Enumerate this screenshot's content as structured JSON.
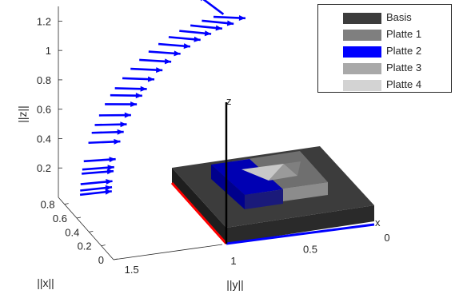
{
  "chart_data": {
    "type": "3d-quiver",
    "title": "",
    "axes": {
      "x_label": "||x||",
      "y_label": "||y||",
      "z_label": "||z||",
      "x_ticks": [
        "0",
        "0.2",
        "0.4",
        "0.6",
        "0.8"
      ],
      "y_ticks": [
        "0",
        "0.5",
        "1",
        "1.5"
      ],
      "z_ticks": [
        "0.2",
        "0.4",
        "0.6",
        "0.8",
        "1",
        "1.2"
      ],
      "xlim": [
        0,
        0.9
      ],
      "ylim": [
        0,
        1.8
      ],
      "zlim": [
        0,
        1.3
      ]
    },
    "frame_axes": {
      "x": {
        "label": "x",
        "color": "#0000ff"
      },
      "z": {
        "label": "z",
        "color": "#000000"
      },
      "y": {
        "color": "#ff0000"
      }
    },
    "legend": {
      "placement": "top-right",
      "entries": [
        {
          "name": "Basis",
          "color": "#3c3c3c"
        },
        {
          "name": "Platte 1",
          "color": "#7f7f7f"
        },
        {
          "name": "Platte 2",
          "color": "#0000ff"
        },
        {
          "name": "Platte 3",
          "color": "#a9a9a9"
        },
        {
          "name": "Platte 4",
          "color": "#d3d3d3"
        }
      ]
    },
    "arrow_color": "#0000ff",
    "arrows": [
      {
        "z": 0.08,
        "dir": 1
      },
      {
        "z": 0.1,
        "dir": -1
      },
      {
        "z": 0.13,
        "dir": 1
      },
      {
        "z": 0.18,
        "dir": -1
      },
      {
        "z": 0.2,
        "dir": 1
      },
      {
        "z": 0.24,
        "dir": -1
      },
      {
        "z": 0.33,
        "dir": 1
      },
      {
        "z": 0.38,
        "dir": -1
      },
      {
        "z": 0.42,
        "dir": 1
      },
      {
        "z": 0.47,
        "dir": -1
      },
      {
        "z": 0.53,
        "dir": 1
      },
      {
        "z": 0.58,
        "dir": -1
      },
      {
        "z": 0.62,
        "dir": 1
      },
      {
        "z": 0.68,
        "dir": -1
      },
      {
        "z": 0.74,
        "dir": 1
      },
      {
        "z": 0.8,
        "dir": -1
      },
      {
        "z": 0.86,
        "dir": 1
      },
      {
        "z": 0.92,
        "dir": -1
      },
      {
        "z": 0.98,
        "dir": 1
      },
      {
        "z": 1.04,
        "dir": -1
      },
      {
        "z": 1.1,
        "dir": 1
      },
      {
        "z": 1.16,
        "dir": -1
      },
      {
        "z": 1.22,
        "dir": 1
      },
      {
        "z": 1.27,
        "dir": -1
      }
    ]
  }
}
